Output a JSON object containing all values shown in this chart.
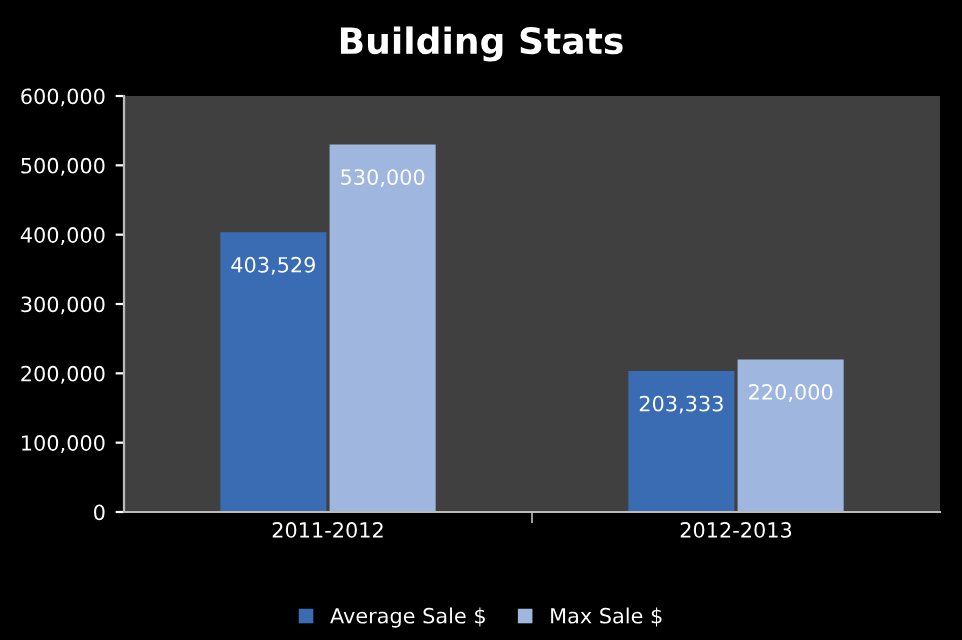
{
  "chart_data": {
    "type": "bar",
    "title": "Building Stats",
    "categories": [
      "2011-2012",
      "2012-2013"
    ],
    "series": [
      {
        "name": "Average Sale $",
        "color": "#3a6cb4",
        "values": [
          403529,
          203333
        ],
        "value_labels": [
          "403,529",
          "203,333"
        ]
      },
      {
        "name": "Max Sale $",
        "color": "#9fb6de",
        "values": [
          530000,
          220000
        ],
        "value_labels": [
          "530,000",
          "220,000"
        ]
      }
    ],
    "ylim": [
      0,
      600000
    ],
    "yticks": [
      {
        "value": 0,
        "label": "0"
      },
      {
        "value": 100000,
        "label": "100,000"
      },
      {
        "value": 200000,
        "label": "200,000"
      },
      {
        "value": 300000,
        "label": "300,000"
      },
      {
        "value": 400000,
        "label": "400,000"
      },
      {
        "value": 500000,
        "label": "500,000"
      },
      {
        "value": 600000,
        "label": "600,000"
      }
    ],
    "grid": false,
    "legend": "bottom"
  }
}
